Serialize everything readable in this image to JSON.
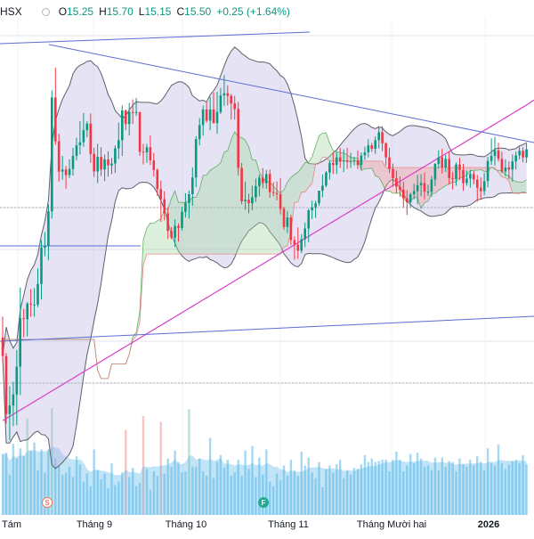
{
  "header": {
    "symbol": "HSX",
    "open_label": "O",
    "open": "15.25",
    "high_label": "H",
    "high": "15.70",
    "low_label": "L",
    "low": "15.15",
    "close_label": "C",
    "close": "15.50",
    "change": "+0.25 (+1.64%)"
  },
  "x_axis": {
    "labels": [
      "Tám",
      "Tháng 9",
      "Tháng 10",
      "Tháng 11",
      "Tháng Mười hai",
      "2026"
    ],
    "bold_index": 5
  },
  "badges": {
    "split": "S",
    "financial": "F"
  },
  "colors": {
    "up": "#089981",
    "down": "#f23645",
    "bollinger_fill": "#b8b3e0",
    "bollinger_line": "#5d606b",
    "cloud_bull": "#a5d6a7",
    "cloud_bear": "#ef9a9a",
    "trendline": "#5b6dd3",
    "ma_long": "#d940c8",
    "volume": "#8fd0ef"
  },
  "chart_data": {
    "type": "candlestick",
    "title": "",
    "xlabel": "",
    "ylabel": "",
    "price_ylim": [
      9.0,
      19.0
    ],
    "grid": true,
    "candles": [
      [
        12.45,
        12.86,
        11.96,
        12.08
      ],
      [
        12.08,
        12.14,
        10.74,
        10.93
      ],
      [
        10.93,
        11.48,
        10.41,
        11.1
      ],
      [
        11.1,
        11.57,
        10.69,
        11.32
      ],
      [
        11.32,
        12.2,
        10.71,
        11.87
      ],
      [
        11.87,
        13.44,
        11.31,
        12.83
      ],
      [
        12.83,
        13.02,
        12.45,
        12.81
      ],
      [
        12.81,
        13.15,
        12.47,
        13.12
      ],
      [
        13.12,
        13.41,
        12.86,
        13.1
      ],
      [
        13.1,
        13.43,
        12.86,
        13.1
      ],
      [
        13.1,
        13.82,
        13.05,
        13.51
      ],
      [
        13.51,
        14.38,
        13.2,
        14.23
      ],
      [
        14.23,
        14.54,
        14.06,
        14.27
      ],
      [
        14.27,
        15.09,
        13.98,
        14.95
      ],
      [
        14.95,
        17.35,
        14.81,
        17.21
      ],
      [
        17.21,
        17.8,
        16.27,
        16.34
      ],
      [
        16.34,
        16.49,
        15.54,
        15.74
      ],
      [
        15.74,
        16.05,
        15.58,
        15.78
      ],
      [
        15.78,
        15.85,
        15.4,
        15.67
      ],
      [
        15.67,
        15.98,
        15.61,
        15.79
      ],
      [
        15.79,
        16.21,
        15.66,
        16.05
      ],
      [
        16.05,
        16.41,
        15.96,
        16.26
      ],
      [
        16.26,
        16.74,
        16.08,
        16.32
      ],
      [
        16.32,
        16.9,
        16.23,
        16.56
      ],
      [
        16.56,
        16.74,
        16.42,
        16.69
      ],
      [
        16.69,
        16.89,
        15.91,
        16.09
      ],
      [
        16.09,
        16.21,
        15.63,
        15.74
      ],
      [
        15.74,
        16.29,
        15.51,
        16.03
      ],
      [
        16.03,
        16.22,
        15.65,
        15.78
      ],
      [
        15.78,
        16.08,
        15.55,
        15.98
      ],
      [
        15.98,
        16.14,
        15.64,
        15.86
      ],
      [
        15.86,
        16.01,
        15.69,
        15.9
      ],
      [
        15.9,
        16.26,
        15.71,
        16.2
      ],
      [
        16.2,
        16.71,
        15.99,
        16.36
      ],
      [
        16.36,
        17.05,
        16.05,
        16.95
      ],
      [
        16.95,
        16.97,
        16.56,
        16.68
      ],
      [
        16.68,
        17.1,
        16.46,
        16.92
      ],
      [
        16.92,
        17.17,
        16.68,
        16.9
      ],
      [
        16.9,
        17.2,
        16.84,
        16.92
      ],
      [
        16.92,
        16.92,
        16.05,
        16.13
      ],
      [
        16.13,
        16.29,
        15.88,
        16.12
      ],
      [
        16.12,
        16.29,
        15.91,
        16.22
      ],
      [
        16.22,
        16.46,
        15.87,
        15.96
      ],
      [
        15.96,
        16.11,
        15.64,
        15.77
      ],
      [
        15.77,
        15.8,
        15.26,
        15.39
      ],
      [
        15.39,
        15.56,
        14.74,
        15.19
      ],
      [
        15.19,
        15.35,
        14.77,
        14.91
      ],
      [
        14.91,
        15.03,
        14.4,
        14.56
      ],
      [
        14.56,
        14.64,
        14.4,
        14.43
      ],
      [
        14.43,
        14.79,
        14.24,
        14.66
      ],
      [
        14.66,
        14.71,
        14.35,
        14.62
      ],
      [
        14.62,
        15.04,
        14.57,
        14.94
      ],
      [
        14.94,
        15.31,
        14.83,
        15.12
      ],
      [
        15.12,
        15.36,
        14.81,
        15.29
      ],
      [
        15.29,
        15.82,
        15.06,
        15.62
      ],
      [
        15.62,
        16.44,
        15.43,
        16.38
      ],
      [
        16.38,
        16.8,
        16.26,
        16.66
      ],
      [
        16.66,
        17.05,
        16.45,
        16.97
      ],
      [
        16.97,
        17.11,
        16.71,
        16.75
      ],
      [
        16.75,
        17.22,
        16.56,
        16.97
      ],
      [
        16.97,
        17.31,
        16.69,
        16.7
      ],
      [
        16.7,
        17.32,
        16.49,
        16.92
      ],
      [
        16.92,
        17.4,
        16.88,
        17.25
      ],
      [
        17.25,
        17.65,
        17.04,
        17.29
      ],
      [
        17.29,
        17.45,
        17.05,
        17.24
      ],
      [
        17.24,
        17.28,
        16.77,
        17.09
      ],
      [
        17.09,
        17.24,
        16.77,
        16.98
      ],
      [
        16.98,
        17.12,
        15.66,
        15.81
      ],
      [
        15.81,
        15.91,
        15.09,
        15.15
      ],
      [
        15.15,
        15.54,
        14.98,
        15.18
      ],
      [
        15.18,
        15.3,
        14.91,
        15.11
      ],
      [
        15.11,
        15.46,
        14.97,
        15.23
      ],
      [
        15.23,
        15.6,
        15.14,
        15.45
      ],
      [
        15.45,
        15.68,
        15.25,
        15.62
      ],
      [
        15.62,
        15.81,
        15.41,
        15.51
      ],
      [
        15.51,
        15.77,
        15.4,
        15.69
      ],
      [
        15.69,
        15.78,
        15.22,
        15.33
      ],
      [
        15.33,
        15.53,
        15.25,
        15.31
      ],
      [
        15.31,
        15.54,
        15.17,
        15.29
      ],
      [
        15.29,
        15.61,
        14.89,
        15.0
      ],
      [
        15.0,
        15.04,
        14.58,
        14.64
      ],
      [
        14.64,
        14.96,
        14.52,
        14.83
      ],
      [
        14.83,
        14.88,
        14.28,
        14.38
      ],
      [
        14.38,
        14.45,
        13.99,
        14.29
      ],
      [
        14.29,
        14.63,
        14.01,
        14.17
      ],
      [
        14.17,
        14.5,
        14.12,
        14.4
      ],
      [
        14.4,
        14.73,
        14.24,
        14.61
      ],
      [
        14.61,
        15.0,
        14.34,
        14.97
      ],
      [
        14.97,
        15.16,
        14.8,
        15.03
      ],
      [
        15.03,
        15.16,
        14.82,
        15.11
      ],
      [
        15.11,
        15.36,
        15.06,
        15.36
      ],
      [
        15.36,
        15.68,
        15.23,
        15.46
      ],
      [
        15.46,
        15.75,
        15.43,
        15.72
      ],
      [
        15.72,
        15.96,
        15.58,
        15.91
      ],
      [
        15.91,
        16.13,
        15.69,
        15.87
      ],
      [
        15.87,
        16.13,
        15.69,
        16.02
      ],
      [
        16.02,
        16.21,
        15.81,
        15.94
      ],
      [
        15.94,
        16.18,
        15.73,
        15.96
      ],
      [
        15.96,
        16.21,
        15.79,
        15.93
      ],
      [
        15.93,
        16.11,
        15.81,
        15.94
      ],
      [
        15.94,
        16.03,
        15.86,
        15.96
      ],
      [
        15.96,
        16.16,
        15.79,
        15.87
      ],
      [
        15.87,
        16.12,
        15.78,
        16.06
      ],
      [
        16.06,
        16.23,
        15.97,
        16.12
      ],
      [
        16.12,
        16.38,
        16.02,
        16.26
      ],
      [
        16.26,
        16.31,
        16.13,
        16.19
      ],
      [
        16.19,
        16.44,
        16.09,
        16.36
      ],
      [
        16.36,
        16.62,
        16.2,
        16.52
      ],
      [
        16.52,
        16.64,
        16.14,
        16.3
      ],
      [
        16.3,
        16.32,
        15.86,
        16.02
      ],
      [
        16.02,
        16.21,
        15.71,
        15.79
      ],
      [
        15.79,
        15.9,
        15.44,
        15.61
      ],
      [
        15.61,
        15.76,
        15.31,
        15.44
      ],
      [
        15.44,
        15.64,
        15.24,
        15.38
      ],
      [
        15.38,
        15.54,
        15.03,
        15.21
      ],
      [
        15.21,
        15.37,
        14.88,
        15.13
      ],
      [
        15.13,
        15.32,
        15.02,
        15.29
      ],
      [
        15.29,
        15.5,
        15.19,
        15.35
      ],
      [
        15.35,
        15.67,
        15.09,
        15.47
      ],
      [
        15.47,
        15.69,
        15.25,
        15.51
      ],
      [
        15.51,
        15.72,
        15.19,
        15.34
      ],
      [
        15.34,
        15.48,
        15.26,
        15.34
      ],
      [
        15.34,
        15.65,
        15.24,
        15.58
      ],
      [
        15.58,
        15.91,
        15.45,
        15.89
      ],
      [
        15.89,
        16.16,
        15.8,
        16.02
      ],
      [
        16.02,
        16.19,
        15.7,
        15.82
      ],
      [
        15.82,
        16.07,
        15.73,
        15.99
      ],
      [
        15.99,
        16.14,
        15.48,
        15.61
      ],
      [
        15.61,
        15.73,
        15.38,
        15.59
      ],
      [
        15.59,
        15.92,
        15.46,
        15.88
      ],
      [
        15.88,
        16.01,
        15.57,
        15.77
      ],
      [
        15.77,
        15.89,
        15.36,
        15.51
      ],
      [
        15.51,
        15.76,
        15.46,
        15.6
      ],
      [
        15.6,
        15.77,
        15.42,
        15.69
      ],
      [
        15.69,
        15.75,
        15.49,
        15.58
      ],
      [
        15.58,
        15.67,
        15.14,
        15.42
      ],
      [
        15.42,
        15.62,
        15.2,
        15.35
      ],
      [
        15.35,
        15.71,
        15.27,
        15.55
      ],
      [
        15.55,
        16.03,
        15.43,
        15.95
      ],
      [
        15.95,
        16.4,
        15.87,
        16.05
      ],
      [
        16.05,
        16.43,
        15.86,
        16.16
      ],
      [
        16.16,
        16.31,
        15.94,
        15.99
      ],
      [
        15.99,
        16.13,
        15.71,
        15.74
      ],
      [
        15.74,
        15.98,
        15.65,
        15.82
      ],
      [
        15.82,
        15.94,
        15.59,
        15.78
      ],
      [
        15.78,
        16.08,
        15.54,
        15.94
      ],
      [
        15.94,
        16.14,
        15.78,
        16.06
      ],
      [
        16.06,
        16.24,
        15.98,
        16.15
      ],
      [
        16.15,
        16.22,
        15.92,
        16.02
      ],
      [
        16.02,
        16.31,
        15.91,
        16.18
      ]
    ],
    "volume": [
      0.53,
      0.54,
      0.35,
      0.62,
      0.49,
      0.58,
      0.51,
      0.84,
      0.56,
      0.63,
      0.39,
      0.57,
      0.37,
      0.57,
      0.93,
      0.49,
      0.43,
      0.35,
      0.37,
      0.42,
      0.33,
      0.51,
      0.44,
      0.29,
      0.36,
      0.25,
      0.57,
      0.39,
      0.31,
      0.36,
      0.23,
      0.45,
      0.26,
      0.29,
      0.37,
      0.74,
      0.33,
      0.41,
      0.25,
      0.28,
      0.86,
      0.4,
      0.22,
      0.38,
      0.34,
      0.81,
      0.36,
      0.49,
      0.42,
      0.56,
      0.46,
      0.37,
      0.38,
      0.92,
      0.42,
      0.42,
      0.49,
      0.38,
      0.34,
      0.67,
      0.32,
      0.46,
      0.52,
      0.41,
      0.48,
      0.34,
      0.37,
      0.48,
      0.34,
      0.56,
      0.4,
      0.6,
      0.33,
      0.5,
      0.35,
      0.57,
      0.29,
      0.25,
      0.36,
      0.3,
      0.43,
      0.34,
      0.48,
      0.39,
      0.34,
      0.55,
      0.43,
      0.5,
      0.37,
      0.32,
      0.46,
      0.24,
      0.4,
      0.43,
      0.37,
      0.44,
      0.48,
      0.32,
      0.39,
      0.35,
      0.41,
      0.4,
      0.44,
      0.52,
      0.46,
      0.49,
      0.46,
      0.47,
      0.48,
      0.48,
      0.38,
      0.48,
      0.55,
      0.48,
      0.38,
      0.43,
      0.53,
      0.45,
      0.54,
      0.49,
      0.42,
      0.43,
      0.39,
      0.5,
      0.39,
      0.5,
      0.42,
      0.47,
      0.46,
      0.38,
      0.49,
      0.44,
      0.42,
      0.48,
      0.43,
      0.51,
      0.46,
      0.39,
      0.58,
      0.45,
      0.43,
      0.61,
      0.45,
      0.4,
      0.44,
      0.47,
      0.48,
      0.45,
      0.52,
      0.44
    ]
  }
}
